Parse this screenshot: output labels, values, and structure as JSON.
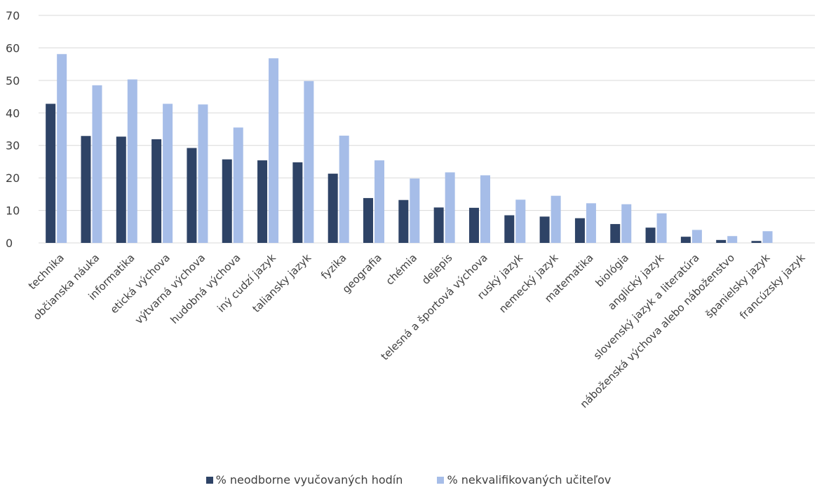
{
  "chart_data": {
    "type": "bar",
    "categories": [
      "technika",
      "občianska náuka",
      "informatika",
      "etická výchova",
      "výtvarná výchova",
      "hudobná výchova",
      "iný cudzí jazyk",
      "taliansky jazyk",
      "fyzika",
      "geografia",
      "chémia",
      "dejepis",
      "telesná a športová výchova",
      "ruský jazyk",
      "nemecký jazyk",
      "matematika",
      "biológia",
      "anglický jazyk",
      "slovenský jazyk a literatúra",
      "náboženská výchova alebo náboženstvo",
      "španielsky jazyk",
      "francúzsky jazyk"
    ],
    "series": [
      {
        "name": "% neodborne vyučovaných hodín",
        "color": "#2e4366",
        "values": [
          42.8,
          32.9,
          32.7,
          31.9,
          29.2,
          25.7,
          25.4,
          24.8,
          21.3,
          13.8,
          13.2,
          10.9,
          10.8,
          8.5,
          8.1,
          7.6,
          5.8,
          4.7,
          1.9,
          0.9,
          0.6,
          0
        ]
      },
      {
        "name": "% nekvalifikovaných učiteľov",
        "color": "#a6bde8",
        "values": [
          58.1,
          48.5,
          50.3,
          42.8,
          42.6,
          35.5,
          56.8,
          49.8,
          33.0,
          25.4,
          19.8,
          21.7,
          20.8,
          13.3,
          14.5,
          12.2,
          11.9,
          9.1,
          4.0,
          2.1,
          3.6,
          0
        ]
      }
    ],
    "yticks": [
      0,
      10,
      20,
      30,
      40,
      50,
      60,
      70
    ],
    "ylim": [
      0,
      70
    ],
    "grid": true,
    "legend_position": "bottom"
  }
}
